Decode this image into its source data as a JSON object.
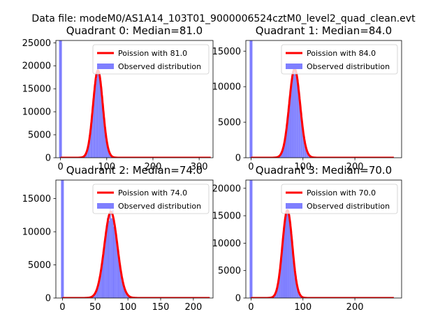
{
  "figure": {
    "suptitle": "Data file: modeM0/AS1A14_103T01_9000006524cztM0_level2_quad_clean.evt"
  },
  "colors": {
    "poisson": "#ff0000",
    "observed": "#7f7fff",
    "axis": "#000000"
  },
  "chart_data": [
    {
      "type": "bar",
      "title": "Quadrant 0: Median=81.0",
      "median": 81.0,
      "xlim": [
        -10,
        330
      ],
      "ylim": [
        0,
        25500
      ],
      "xticks": [
        0,
        100,
        200,
        300
      ],
      "yticks": [
        0,
        5000,
        10000,
        15000,
        20000,
        25000
      ],
      "xlabel": "",
      "ylabel": "",
      "legend": [
        "Poission with 81.0",
        "Observed distribution"
      ],
      "spike": {
        "x": 0,
        "height": 25500
      },
      "peak": 19000,
      "sigma": 10.5,
      "curve_end": 325,
      "legend_position": "upper right"
    },
    {
      "type": "bar",
      "title": "Quadrant 1: Median=84.0",
      "median": 84.0,
      "xlim": [
        -10,
        290
      ],
      "ylim": [
        0,
        16500
      ],
      "xticks": [
        0,
        100,
        200
      ],
      "yticks": [
        0,
        5000,
        10000,
        15000
      ],
      "xlabel": "",
      "ylabel": "",
      "legend": [
        "Poission with 84.0",
        "Observed distribution"
      ],
      "spike": {
        "x": 0,
        "height": 16500
      },
      "peak": 12500,
      "sigma": 10.5,
      "curve_end": 275,
      "legend_position": "upper right"
    },
    {
      "type": "bar",
      "title": "Quadrant 2: Median=74.0",
      "median": 74.0,
      "xlim": [
        -10,
        230
      ],
      "ylim": [
        0,
        17800
      ],
      "xticks": [
        0,
        50,
        100,
        150,
        200
      ],
      "yticks": [
        0,
        5000,
        10000,
        15000
      ],
      "xlabel": "",
      "ylabel": "",
      "legend": [
        "Poission with 74.0",
        "Observed distribution"
      ],
      "spike": {
        "x": 0,
        "height": 17800
      },
      "peak": 13000,
      "sigma": 10.0,
      "curve_end": 225,
      "legend_position": "upper right"
    },
    {
      "type": "bar",
      "title": "Quadrant 3: Median=70.0",
      "median": 70.0,
      "xlim": [
        -10,
        290
      ],
      "ylim": [
        0,
        21500
      ],
      "xticks": [
        0,
        100,
        200
      ],
      "yticks": [
        0,
        5000,
        10000,
        15000,
        20000
      ],
      "xlabel": "",
      "ylabel": "",
      "legend": [
        "Poission with 70.0",
        "Observed distribution"
      ],
      "spike": {
        "x": 0,
        "height": 21500
      },
      "peak": 16000,
      "sigma": 9.5,
      "curve_end": 275,
      "legend_position": "upper right"
    }
  ]
}
